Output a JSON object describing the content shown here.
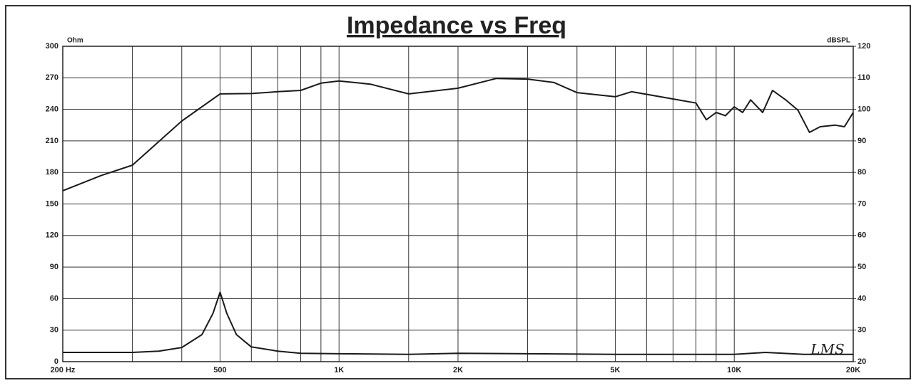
{
  "chart_data": {
    "type": "line",
    "title": "Impedance vs Freq",
    "ylabel": "Ohm",
    "y2label": "dBSPL",
    "annotation": "LMS",
    "xscale": "log",
    "xlim": [
      200,
      20000
    ],
    "xticks": [
      {
        "value": 200,
        "label": "200 Hz"
      },
      500,
      {
        "value": 1000,
        "label": "1K"
      },
      {
        "value": 2000,
        "label": "2K"
      },
      {
        "value": 5000,
        "label": "5K"
      },
      {
        "value": 10000,
        "label": "10K"
      },
      {
        "value": 20000,
        "label": "20K"
      }
    ],
    "xgrid": [
      300,
      400,
      600,
      700,
      800,
      900,
      1500,
      3000,
      4000,
      6000,
      7000,
      8000,
      9000
    ],
    "ylim": [
      0,
      300
    ],
    "yticks": [
      0,
      30,
      60,
      90,
      120,
      150,
      180,
      210,
      240,
      270,
      300
    ],
    "y2lim": [
      20,
      120
    ],
    "y2ticks": [
      20,
      30,
      40,
      50,
      60,
      70,
      80,
      90,
      100,
      110,
      120
    ],
    "grid": true,
    "series": [
      {
        "color": "#1a1a1a",
        "axis": "y2",
        "x": [
          200,
          250,
          300,
          400,
          500,
          600,
          700,
          800,
          900,
          1000,
          1200,
          1500,
          2000,
          2500,
          3000,
          3500,
          4000,
          5000,
          5500,
          7000,
          8000,
          8500,
          9000,
          9500,
          10000,
          10500,
          11000,
          11800,
          12500,
          13500,
          14500,
          15500,
          16500,
          18000,
          19000,
          20000
        ],
        "values": [
          74.2,
          79,
          82.3,
          96.3,
          104.9,
          105,
          105.6,
          106,
          108.3,
          109,
          108,
          104.9,
          106.7,
          109.8,
          109.6,
          108.5,
          105.3,
          104,
          105.6,
          103.3,
          102,
          96.7,
          99,
          98,
          100.8,
          99,
          103,
          99,
          106,
          103,
          99.7,
          92.7,
          94.5,
          95,
          94.5,
          99
        ]
      },
      {
        "color": "#1a1a1a",
        "axis": "y",
        "x": [
          200,
          300,
          350,
          400,
          450,
          480,
          500,
          520,
          550,
          600,
          700,
          800,
          1000,
          1500,
          2000,
          3000,
          5000,
          10000,
          12000,
          15000,
          20000
        ],
        "values": [
          8.8,
          8.8,
          10,
          13.5,
          25.7,
          46,
          66,
          46,
          25.7,
          14,
          10,
          8,
          7.5,
          7,
          8,
          7.5,
          7,
          7,
          8.8,
          7,
          7
        ]
      }
    ]
  }
}
